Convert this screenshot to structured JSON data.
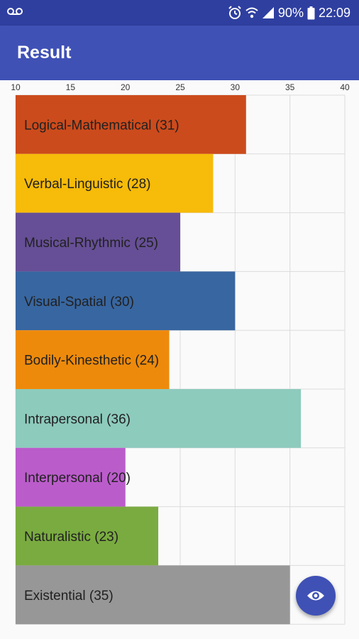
{
  "status_bar": {
    "battery": "90%",
    "time": "22:09",
    "icons": [
      "voicemail-icon",
      "alarm-icon",
      "wifi-icon",
      "signal-icon",
      "battery-icon"
    ]
  },
  "app_bar": {
    "title": "Result"
  },
  "fab": {
    "icon": "eye-icon",
    "color": "#3f51b5"
  },
  "colors": {
    "status_bar": "#2f3fa0",
    "app_bar": "#3f51b5"
  },
  "chart_data": {
    "type": "bar",
    "orientation": "horizontal",
    "xlim": [
      10,
      40
    ],
    "xticks": [
      10,
      15,
      20,
      25,
      30,
      35,
      40
    ],
    "grid": true,
    "categories": [
      "Logical-Mathematical (31)",
      "Verbal-Linguistic (28)",
      "Musical-Rhythmic (25)",
      "Visual-Spatial (30)",
      "Bodily-Kinesthetic (24)",
      "Intrapersonal (36)",
      "Interpersonal (20)",
      "Naturalistic (23)",
      "Existential (35)"
    ],
    "values": [
      31,
      28,
      25,
      30,
      24,
      36,
      20,
      23,
      35
    ],
    "colors": [
      "#cc4b1c",
      "#f7bb09",
      "#664f96",
      "#3866a0",
      "#ee8a0b",
      "#8dcbbd",
      "#bb5ccb",
      "#7aab40",
      "#979797"
    ]
  }
}
